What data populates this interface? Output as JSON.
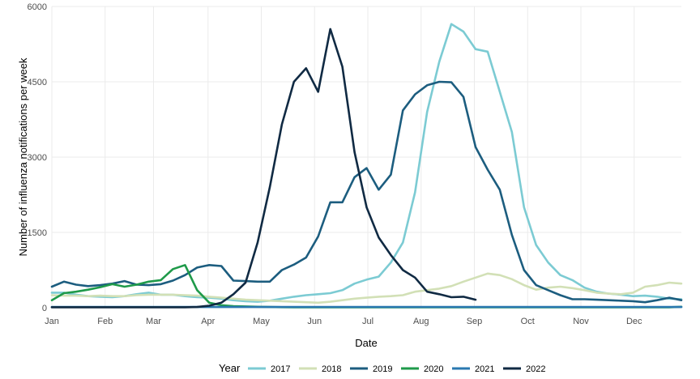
{
  "chart_data": {
    "type": "line",
    "title": "",
    "xlabel": "Date",
    "ylabel": "Number of influenza notifications per week",
    "x_unit": "week",
    "x_ticks": [
      "Jan",
      "Feb",
      "Mar",
      "Apr",
      "May",
      "Jun",
      "Jul",
      "Aug",
      "Sep",
      "Oct",
      "Nov",
      "Dec"
    ],
    "x_tick_weeks": [
      1,
      5.4,
      9.4,
      13.9,
      18.3,
      22.7,
      27.1,
      31.5,
      35.9,
      40.3,
      44.7,
      49.1
    ],
    "xlim": [
      1,
      53
    ],
    "y_ticks": [
      "0",
      "1500",
      "3000",
      "4500",
      "6000"
    ],
    "y_tick_values": [
      0,
      1500,
      3000,
      4500,
      6000
    ],
    "ylim": [
      0,
      6000
    ],
    "grid": true,
    "legend": {
      "title": "Year",
      "position": "bottom"
    },
    "series": [
      {
        "name": "2017",
        "color": "#7ccbd3",
        "values": [
          300,
          300,
          260,
          230,
          220,
          210,
          230,
          270,
          300,
          260,
          260,
          230,
          210,
          200,
          180,
          150,
          130,
          120,
          140,
          180,
          220,
          250,
          270,
          290,
          350,
          480,
          560,
          620,
          900,
          1300,
          2300,
          3900,
          4900,
          5650,
          5500,
          5150,
          5100,
          4300,
          3500,
          2000,
          1250,
          900,
          650,
          550,
          400,
          320,
          280,
          260,
          230,
          240,
          220,
          180,
          170
        ]
      },
      {
        "name": "2018",
        "color": "#d2e0b6",
        "values": [
          250,
          240,
          240,
          230,
          240,
          230,
          230,
          250,
          260,
          260,
          260,
          250,
          240,
          220,
          200,
          180,
          160,
          150,
          140,
          130,
          120,
          110,
          100,
          120,
          150,
          180,
          200,
          220,
          230,
          250,
          320,
          350,
          380,
          430,
          520,
          600,
          680,
          650,
          570,
          450,
          360,
          400,
          420,
          390,
          350,
          300,
          280,
          270,
          300,
          420,
          450,
          500,
          480
        ]
      },
      {
        "name": "2019",
        "color": "#1c5d7f",
        "values": [
          420,
          520,
          460,
          430,
          450,
          480,
          530,
          460,
          450,
          470,
          540,
          650,
          800,
          850,
          830,
          540,
          530,
          520,
          520,
          750,
          860,
          1000,
          1420,
          2100,
          2100,
          2600,
          2780,
          2350,
          2650,
          3930,
          4250,
          4430,
          4500,
          4490,
          4200,
          3200,
          2750,
          2350,
          1450,
          750,
          450,
          350,
          250,
          170,
          170,
          160,
          150,
          140,
          130,
          110,
          150,
          200,
          150
        ]
      },
      {
        "name": "2020",
        "color": "#1f9a4a",
        "values": [
          150,
          290,
          320,
          360,
          410,
          470,
          420,
          460,
          520,
          550,
          770,
          850,
          350,
          100,
          50,
          30,
          25,
          20,
          15,
          12,
          10,
          10,
          10,
          10,
          10,
          10,
          10,
          10,
          10,
          10,
          10,
          10,
          10,
          10,
          10,
          10,
          10,
          10,
          10,
          10,
          10,
          10,
          10,
          10,
          10,
          10,
          10,
          10,
          10,
          10,
          10,
          10,
          20
        ]
      },
      {
        "name": "2021",
        "color": "#2a78b0",
        "values": [
          15,
          15,
          15,
          15,
          15,
          15,
          15,
          15,
          15,
          15,
          15,
          15,
          15,
          15,
          15,
          15,
          15,
          15,
          15,
          15,
          15,
          15,
          15,
          15,
          15,
          15,
          15,
          15,
          15,
          15,
          15,
          15,
          15,
          15,
          15,
          15,
          15,
          15,
          15,
          15,
          15,
          15,
          15,
          15,
          15,
          15,
          15,
          15,
          15,
          15,
          15,
          15,
          15
        ]
      },
      {
        "name": "2022",
        "color": "#102a43",
        "values": [
          10,
          10,
          10,
          10,
          10,
          10,
          10,
          10,
          10,
          10,
          10,
          10,
          15,
          40,
          100,
          270,
          500,
          1300,
          2400,
          3650,
          4500,
          4770,
          4300,
          5550,
          4800,
          3100,
          2000,
          1400,
          1050,
          750,
          600,
          320,
          270,
          210,
          220,
          160
        ]
      }
    ]
  }
}
